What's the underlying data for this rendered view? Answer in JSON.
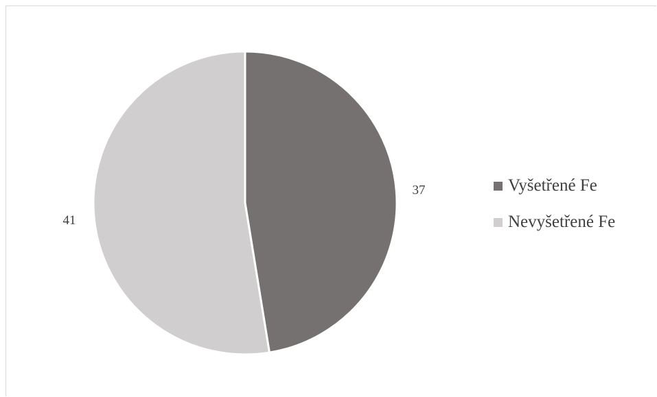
{
  "chart_data": {
    "type": "pie",
    "title": "",
    "slices": [
      {
        "label": "Vyšetřené Fe",
        "value": 37,
        "color": "#767171"
      },
      {
        "label": "Nevyšetřené Fe",
        "value": 41,
        "color": "#d0cece"
      }
    ],
    "data_labels": [
      "37",
      "41"
    ],
    "legend": {
      "placement": "right",
      "entries": [
        "Vyšetřené Fe",
        "Nevyšetřené Fe"
      ]
    },
    "start_angle": "12 o'clock, clockwise"
  }
}
